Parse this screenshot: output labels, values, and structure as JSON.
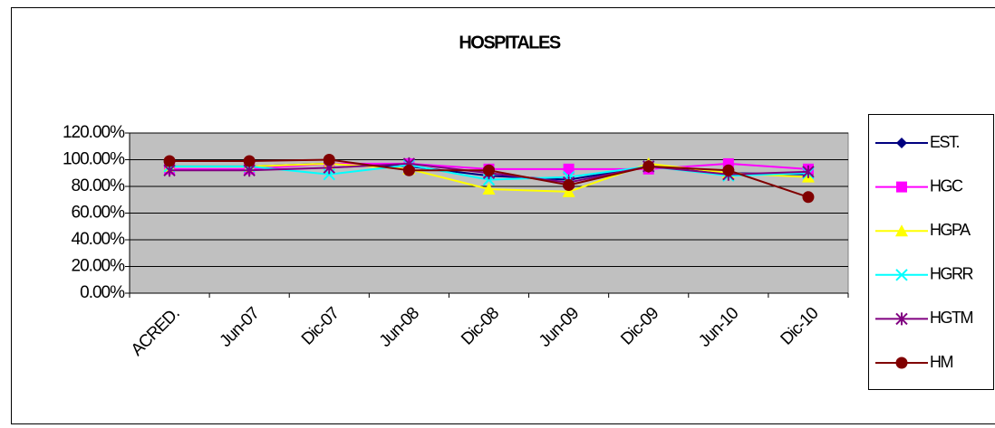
{
  "chart_data": {
    "type": "line",
    "title": "HOSPITALES",
    "categories": [
      "ACRED.",
      "Jun-07",
      "Dic-07",
      "Jun-08",
      "Dic-08",
      "Jun-09",
      "Dic-09",
      "Jun-10",
      "Dic-10"
    ],
    "series": [
      {
        "name": "EST.",
        "color": "#000080",
        "marker": "diamond",
        "values": [
          95,
          95,
          97,
          95,
          88,
          85,
          95,
          90,
          89
        ]
      },
      {
        "name": "HGC",
        "color": "#ff00ff",
        "marker": "square",
        "values": [
          93,
          93,
          97,
          97,
          93,
          93,
          93,
          97,
          93
        ]
      },
      {
        "name": "HGPA",
        "color": "#ffff00",
        "marker": "triangle",
        "values": [
          95,
          95,
          97,
          93,
          78,
          76,
          97,
          90,
          87
        ]
      },
      {
        "name": "HGRR",
        "color": "#00ffff",
        "marker": "x",
        "values": [
          95,
          95,
          89,
          96,
          85,
          87,
          95,
          88,
          90
        ]
      },
      {
        "name": "HGTM",
        "color": "#800080",
        "marker": "star",
        "values": [
          92,
          92,
          94,
          97,
          90,
          83,
          95,
          89,
          91
        ]
      },
      {
        "name": "HM",
        "color": "#800000",
        "marker": "circle",
        "values": [
          99,
          99,
          100,
          92,
          92,
          81,
          95,
          92,
          72
        ]
      }
    ],
    "ylim": [
      0,
      120
    ],
    "yticks": [
      {
        "value": 0,
        "label": "0.00%"
      },
      {
        "value": 20,
        "label": "20.00%"
      },
      {
        "value": 40,
        "label": "40.00%"
      },
      {
        "value": 60,
        "label": "60.00%"
      },
      {
        "value": 80,
        "label": "80.00%"
      },
      {
        "value": 100,
        "label": "100.00%"
      },
      {
        "value": 120,
        "label": "120.00%"
      }
    ],
    "grid": true,
    "plot_color": "#c0c0c0",
    "legend": "right"
  }
}
